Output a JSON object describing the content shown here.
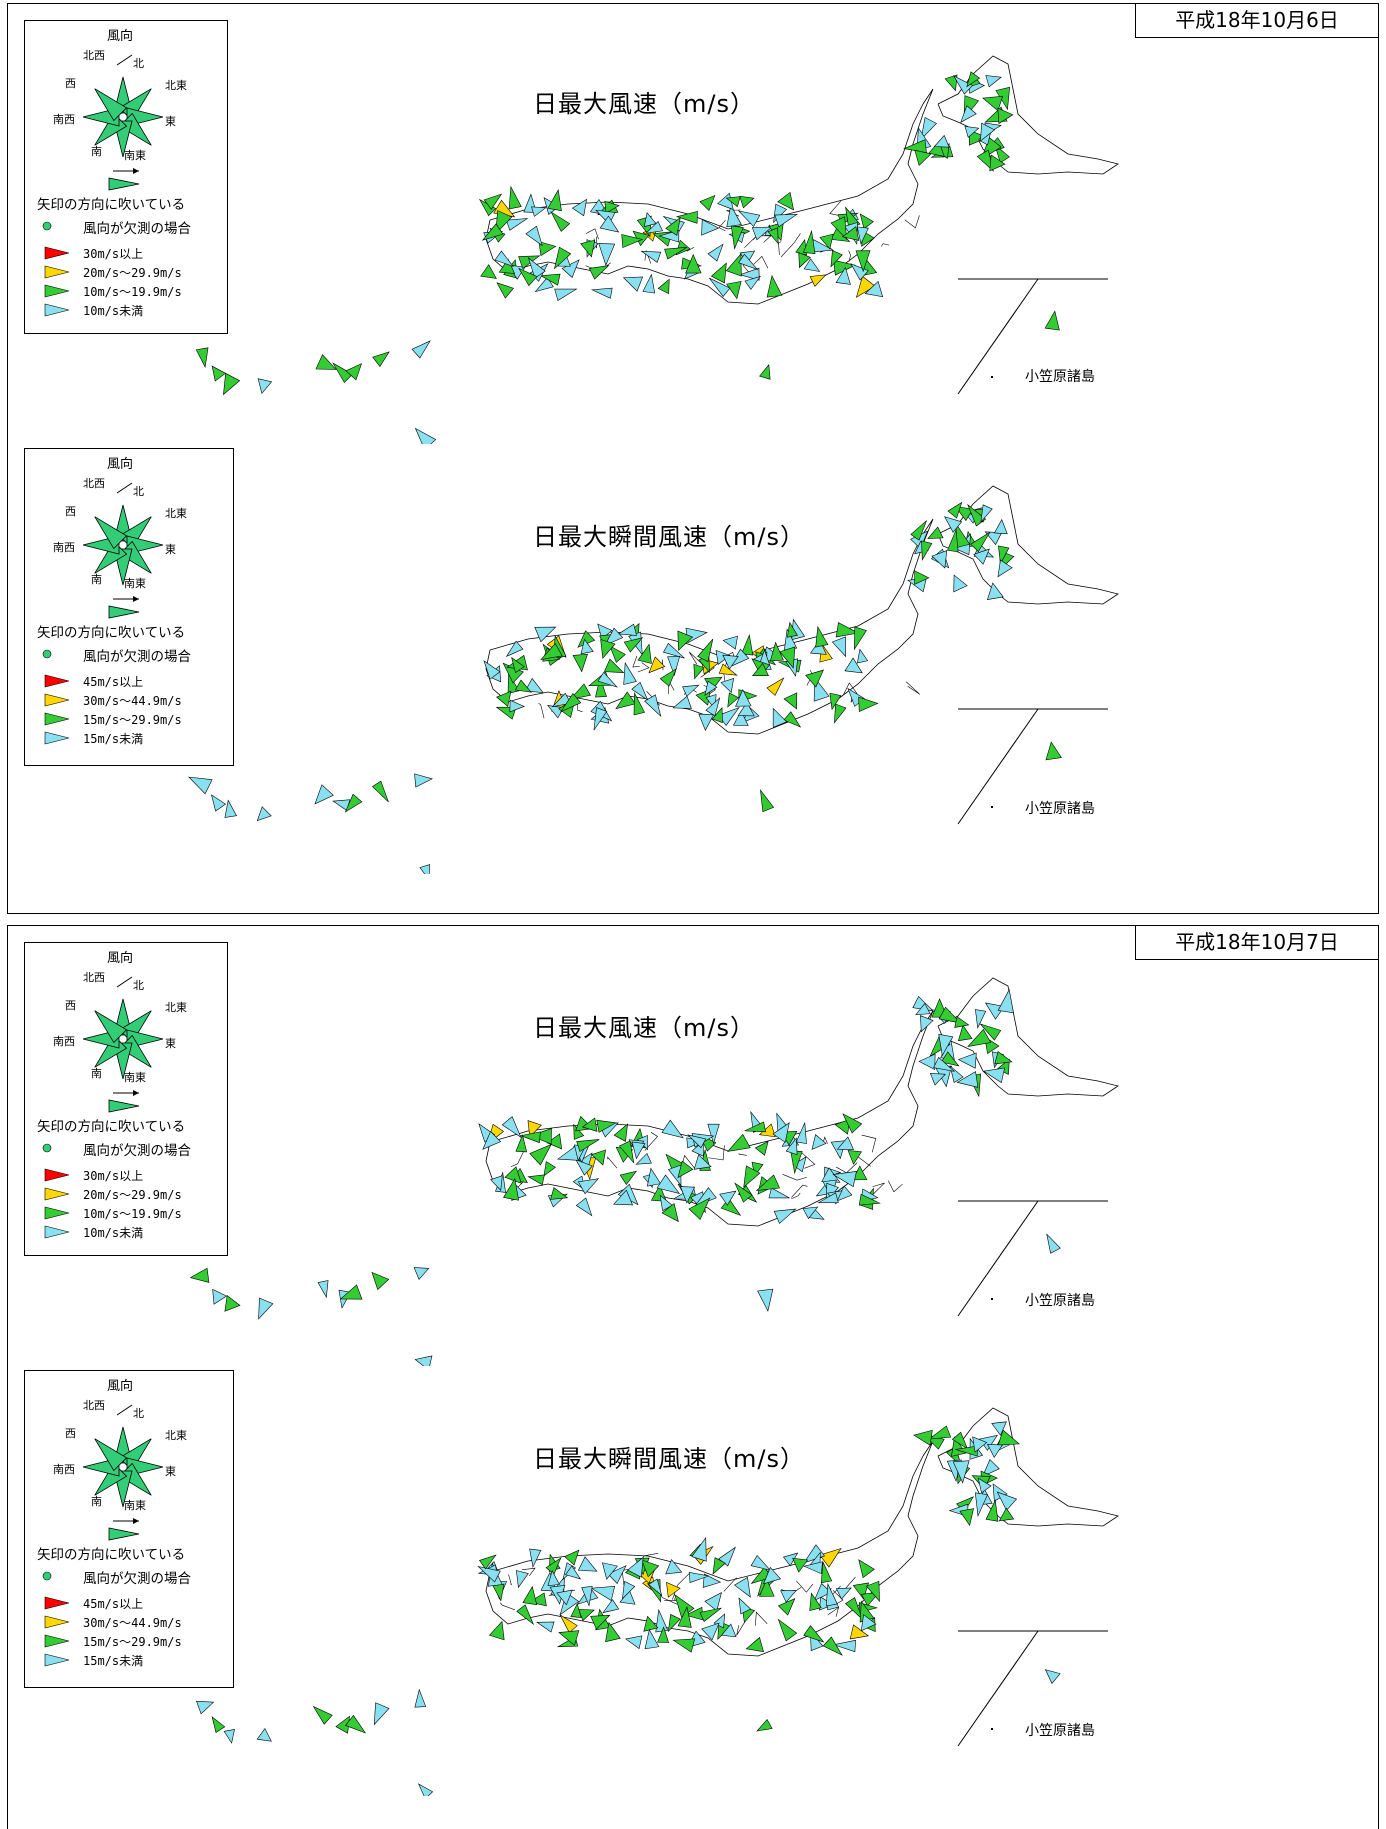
{
  "colors": {
    "red": "#ff0000",
    "yellow": "#ffd700",
    "green": "#33cc33",
    "cyan": "#88e0f0",
    "missing": "#33cc77"
  },
  "legend_common": {
    "title": "風向",
    "dirs": {
      "n": "北",
      "ne": "北東",
      "e": "東",
      "se": "南東",
      "s": "南",
      "sw": "南西",
      "w": "西",
      "nw": "北西"
    },
    "note": "矢印の方向に吹いている",
    "missing": "風向が欠測の場合"
  },
  "max_classes": [
    "30m/s以上",
    "20m/s～29.9m/s",
    "10m/s～19.9m/s",
    "10m/s未満"
  ],
  "gust_classes": [
    "45m/s以上",
    "30m/s～44.9m/s",
    "15m/s～29.9m/s",
    "15m/s未満"
  ],
  "panels": [
    {
      "date": "平成18年10月6日",
      "sections": [
        {
          "title": "日最大風速（m/s）",
          "inset_label": "小笠原諸島",
          "arrows": []
        },
        {
          "title": "日最大瞬間風速（m/s）",
          "inset_label": "小笠原諸島",
          "arrows": []
        }
      ]
    },
    {
      "date": "平成18年10月7日",
      "sections": [
        {
          "title": "日最大風速（m/s）",
          "inset_label": "小笠原諸島",
          "arrows": []
        },
        {
          "title": "日最大瞬間風速（m/s）",
          "inset_label": "小笠原諸島",
          "arrows": []
        }
      ]
    }
  ]
}
